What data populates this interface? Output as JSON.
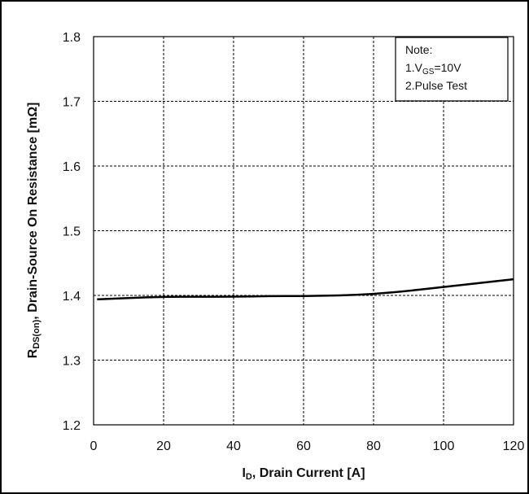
{
  "chart_data": {
    "type": "line",
    "x": [
      1,
      10,
      20,
      30,
      40,
      50,
      60,
      70,
      80,
      90,
      100,
      110,
      120
    ],
    "series": [
      {
        "values": [
          1.394,
          1.396,
          1.398,
          1.398,
          1.398,
          1.399,
          1.399,
          1.4,
          1.402,
          1.407,
          1.413,
          1.419,
          1.425
        ]
      }
    ],
    "xlabel": {
      "main": "I",
      "sub": "D",
      "rest": ", Drain Current [A]"
    },
    "ylabel": {
      "main": "R",
      "sub": "DS(on)",
      "rest": ", Drain-Source On Resistance [mΩ]"
    },
    "xlim": [
      0,
      120
    ],
    "ylim": [
      1.2,
      1.8
    ],
    "xticks": [
      "0",
      "20",
      "40",
      "60",
      "80",
      "100",
      "120"
    ],
    "yticks": [
      "1.2",
      "1.3",
      "1.4",
      "1.5",
      "1.6",
      "1.7",
      "1.8"
    ],
    "grid": true,
    "note": {
      "line1": "Note:",
      "line2_prefix": "1.V",
      "line2_sub": "GS",
      "line2_suffix": "=10V",
      "line3": "2.Pulse Test"
    },
    "line_color": "#000000"
  }
}
